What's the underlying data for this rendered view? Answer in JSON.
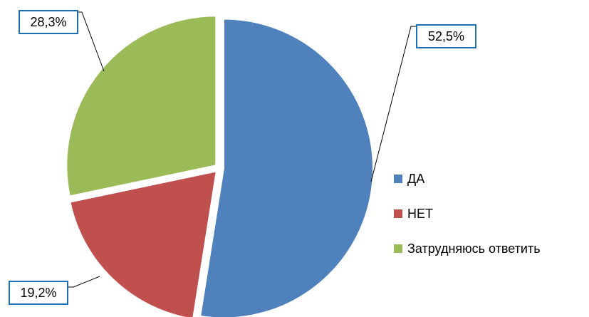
{
  "chart_data": {
    "type": "pie",
    "categories": [
      "ДА",
      "НЕТ",
      "Затрудняюсь ответить"
    ],
    "values": [
      52.5,
      19.2,
      28.3
    ],
    "value_labels": [
      "52,5%",
      "19,2%",
      "28,3%"
    ],
    "colors": [
      "#4f81bd",
      "#c0504d",
      "#9bbb59"
    ],
    "legend": "right"
  }
}
